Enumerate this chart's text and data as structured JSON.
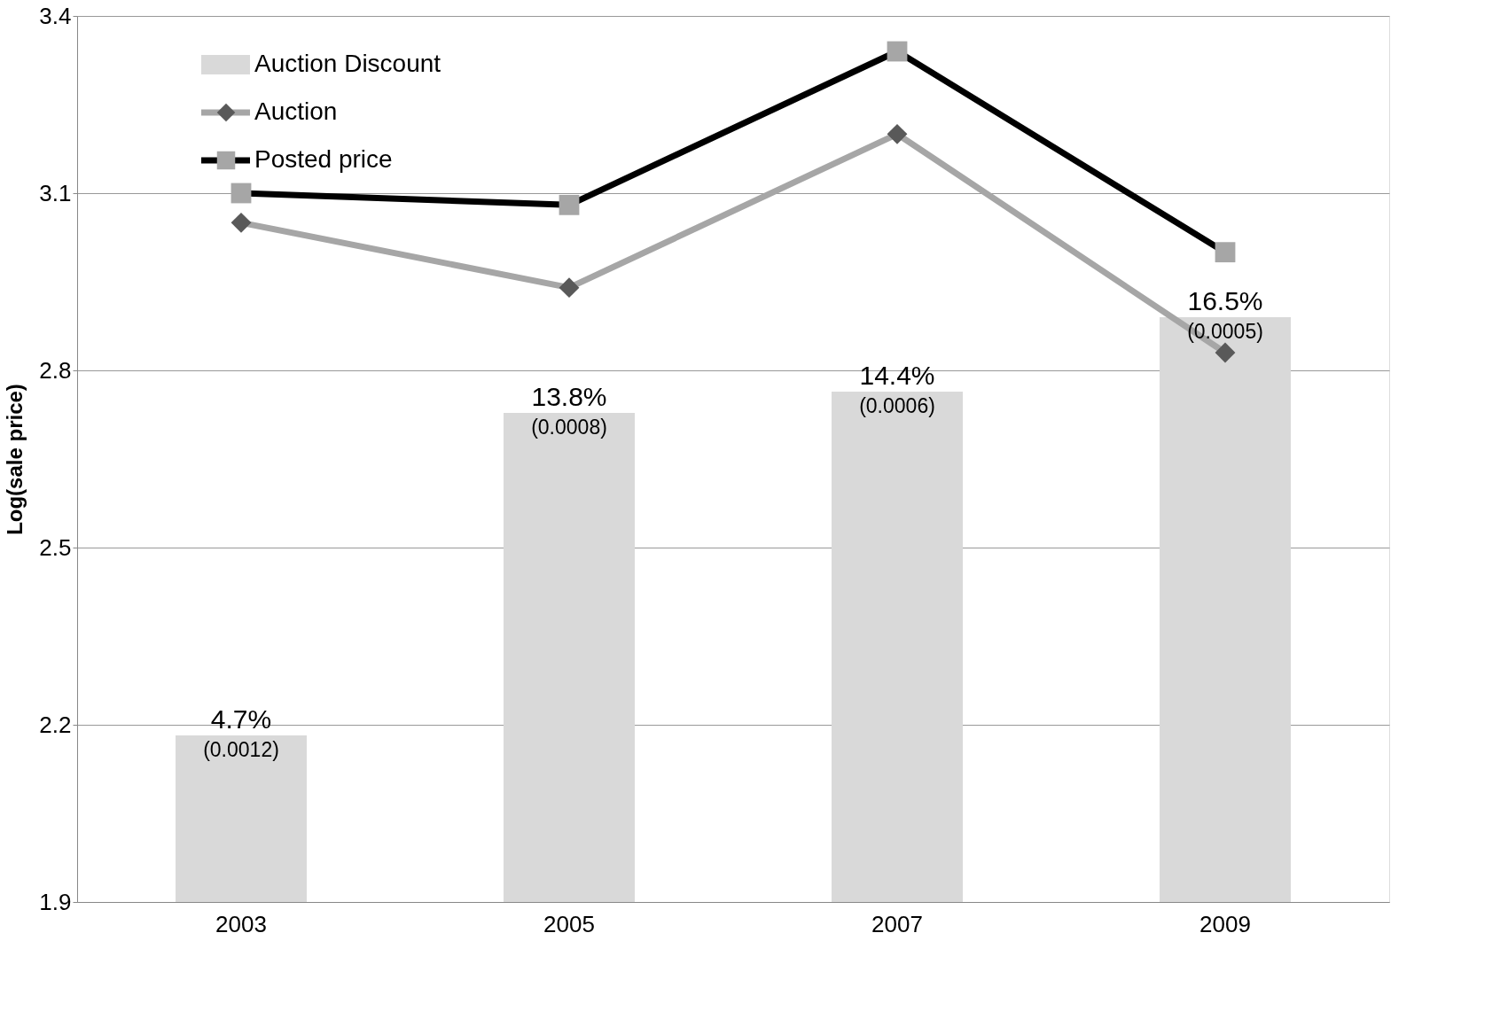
{
  "chart_data": {
    "type": "line",
    "ylabel": "Log(sale price)",
    "categories": [
      "2003",
      "2005",
      "2007",
      "2009"
    ],
    "ylim": [
      1.9,
      3.4
    ],
    "yticks": [
      1.9,
      2.2,
      2.5,
      2.8,
      3.1,
      3.4
    ],
    "y2lim": [
      0,
      25
    ],
    "grid": "y",
    "legend": "top left",
    "series": [
      {
        "name": "Auction Discount",
        "type": "bar",
        "axis": "y2",
        "color": "#d9d9d9",
        "values": [
          4.7,
          13.8,
          14.4,
          16.5
        ],
        "value_labels": [
          "4.7%",
          "13.8%",
          "14.4%",
          "16.5%"
        ]
      },
      {
        "name": "Auction",
        "color": "#a6a6a6",
        "marker": "diamond",
        "values": [
          3.05,
          2.94,
          3.2,
          2.83
        ]
      },
      {
        "name": "Posted price",
        "color": "#000000",
        "marker": "square",
        "values": [
          3.1,
          3.08,
          3.34,
          3.0
        ]
      }
    ],
    "annotations": [
      "(0.0012)",
      "(0.0008)",
      "(0.0006)",
      "(0.0005)"
    ]
  }
}
